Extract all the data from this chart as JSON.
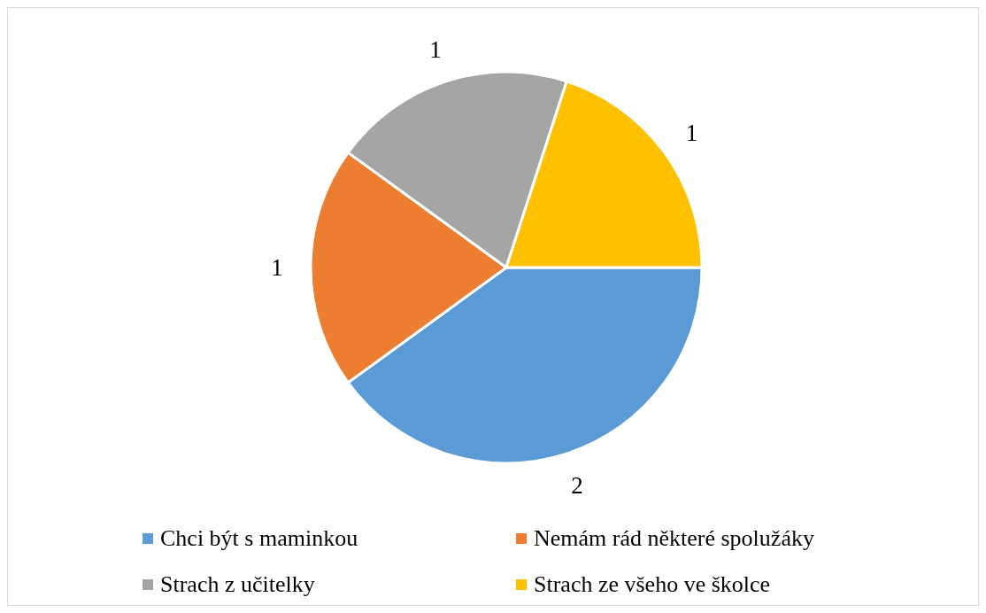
{
  "chart_data": {
    "type": "pie",
    "categories": [
      "Chci být s maminkou",
      "Nemám rád některé spolužáky",
      "Strach z učitelky",
      "Strach ze všeho ve školce"
    ],
    "values": [
      2,
      1,
      1,
      1
    ],
    "colors": [
      "#5b9bd5",
      "#ed7d31",
      "#a5a5a5",
      "#ffc000"
    ],
    "data_labels": true,
    "legend": "bottom"
  }
}
